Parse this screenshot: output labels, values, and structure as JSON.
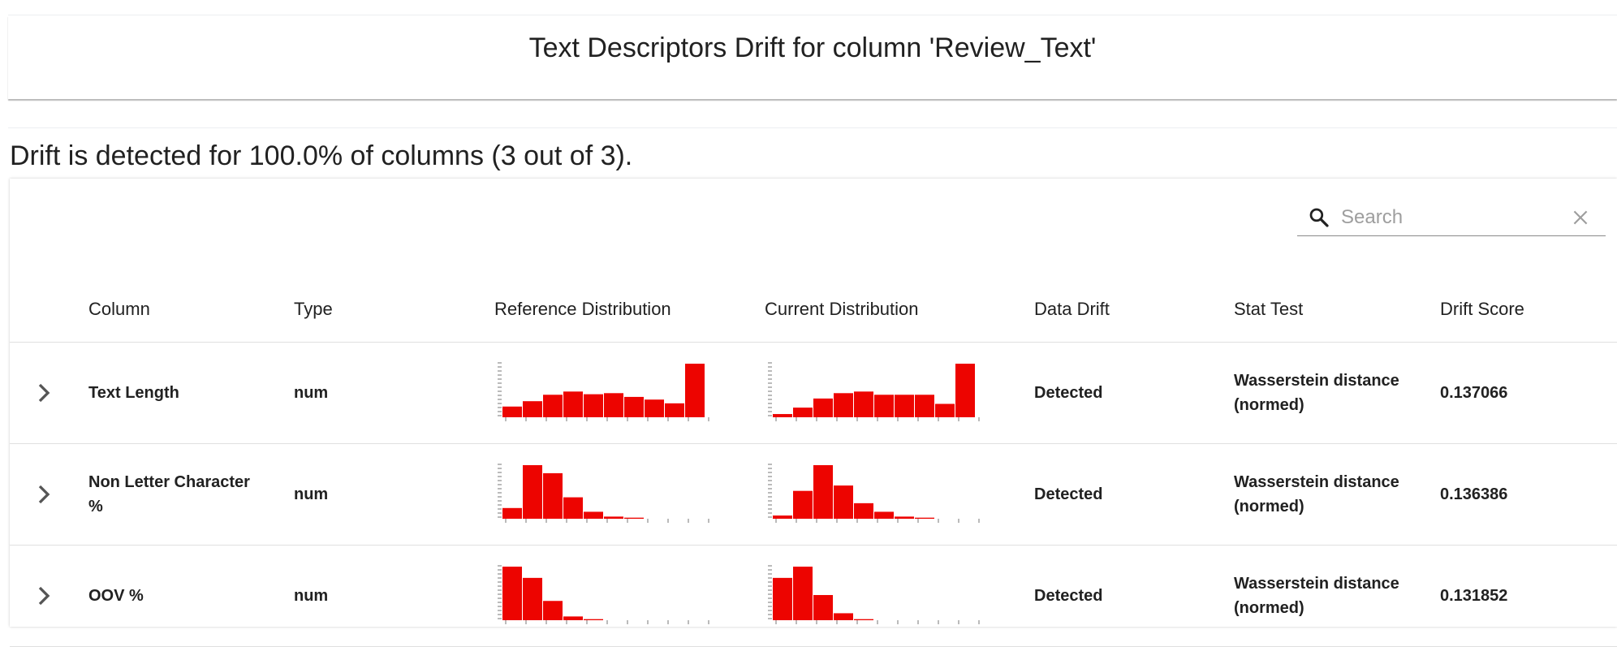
{
  "header": {
    "title": "Text Descriptors Drift for column 'Review_Text'"
  },
  "summary": {
    "text": "Drift is detected for 100.0% of columns (3 out of 3)."
  },
  "search": {
    "placeholder": "Search",
    "value": ""
  },
  "icons": {
    "search": "search-icon",
    "clear": "close-icon",
    "expand": "chevron-right-icon"
  },
  "colors": {
    "bar": "#ed0400",
    "text": "#212121",
    "divider": "#e0e0e0"
  },
  "table": {
    "columns": [
      "Column",
      "Type",
      "Reference Distribution",
      "Current Distribution",
      "Data Drift",
      "Stat Test",
      "Drift Score"
    ],
    "rows": [
      {
        "column": "Text Length",
        "type": "num",
        "data_drift": "Detected",
        "stat_test": "Wasserstein distance (normed)",
        "drift_score": "0.137066",
        "reference_hist": [
          20,
          30,
          42,
          48,
          43,
          45,
          38,
          33,
          26,
          100
        ],
        "current_hist": [
          6,
          18,
          35,
          45,
          48,
          42,
          42,
          42,
          25,
          100
        ]
      },
      {
        "column": "Non Letter Character %",
        "type": "num",
        "data_drift": "Detected",
        "stat_test": "Wasserstein distance (normed)",
        "drift_score": "0.136386",
        "reference_hist": [
          20,
          100,
          85,
          40,
          13,
          4,
          2,
          0,
          0,
          0
        ],
        "current_hist": [
          6,
          52,
          100,
          62,
          29,
          13,
          4,
          2,
          0,
          0
        ]
      },
      {
        "column": "OOV %",
        "type": "num",
        "data_drift": "Detected",
        "stat_test": "Wasserstein distance (normed)",
        "drift_score": "0.131852",
        "reference_hist": [
          100,
          79,
          36,
          7,
          2,
          0,
          0,
          0,
          0,
          0
        ],
        "current_hist": [
          79,
          100,
          47,
          13,
          2,
          0,
          0,
          0,
          0,
          0
        ]
      }
    ]
  }
}
